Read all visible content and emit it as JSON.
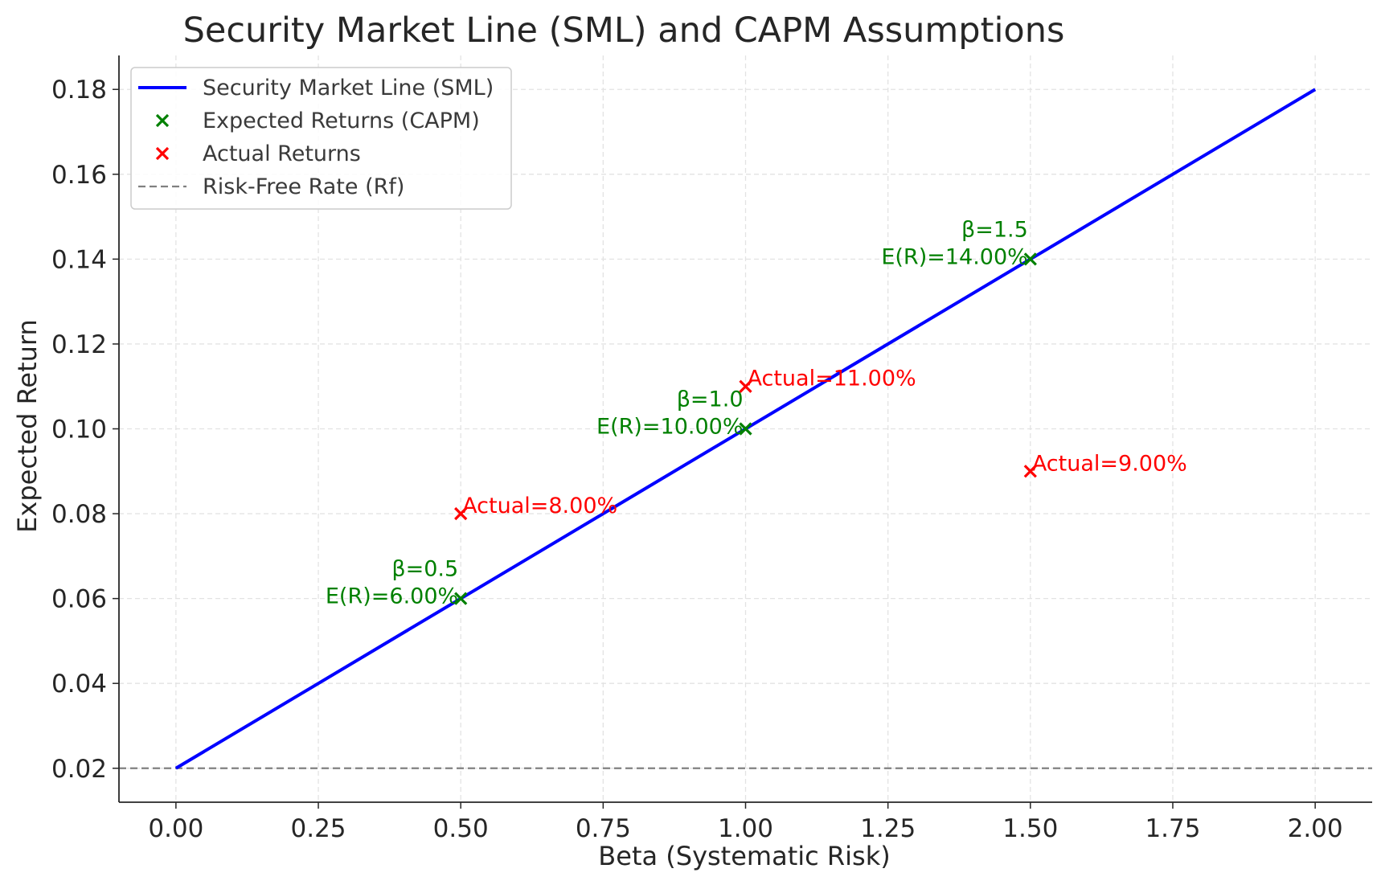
{
  "chart_data": {
    "type": "line",
    "title": "Security Market Line (SML) and CAPM Assumptions",
    "xlabel": "Beta (Systematic Risk)",
    "ylabel": "Expected Return",
    "xlim": [
      -0.1,
      2.1
    ],
    "ylim": [
      0.012,
      0.188
    ],
    "grid": true,
    "legend_position": "top-left",
    "x_ticks": [
      "0.00",
      "0.25",
      "0.50",
      "0.75",
      "1.00",
      "1.25",
      "1.50",
      "1.75",
      "2.00"
    ],
    "x_tick_values": [
      0,
      0.25,
      0.5,
      0.75,
      1.0,
      1.25,
      1.5,
      1.75,
      2.0
    ],
    "y_ticks": [
      "0.02",
      "0.04",
      "0.06",
      "0.08",
      "0.10",
      "0.12",
      "0.14",
      "0.16",
      "0.18"
    ],
    "y_tick_values": [
      0.02,
      0.04,
      0.06,
      0.08,
      0.1,
      0.12,
      0.14,
      0.16,
      0.18
    ],
    "sml": {
      "name": "Security Market Line (SML)",
      "x": [
        0,
        2
      ],
      "y": [
        0.02,
        0.18
      ],
      "color": "#0000ff"
    },
    "expected": {
      "name": "Expected Returns (CAPM)",
      "color": "#008000",
      "points": [
        {
          "beta": 0.5,
          "value": 0.06,
          "beta_label": "β=0.5",
          "value_label": "E(R)=6.00%"
        },
        {
          "beta": 1.0,
          "value": 0.1,
          "beta_label": "β=1.0",
          "value_label": "E(R)=10.00%"
        },
        {
          "beta": 1.5,
          "value": 0.14,
          "beta_label": "β=1.5",
          "value_label": "E(R)=14.00%"
        }
      ]
    },
    "actual": {
      "name": "Actual Returns",
      "color": "#ff0000",
      "points": [
        {
          "beta": 0.5,
          "value": 0.08,
          "label": "Actual=8.00%"
        },
        {
          "beta": 1.0,
          "value": 0.11,
          "label": "Actual=11.00%"
        },
        {
          "beta": 1.5,
          "value": 0.09,
          "label": "Actual=9.00%"
        }
      ]
    },
    "risk_free": {
      "name": "Risk-Free Rate (Rf)",
      "value": 0.02,
      "color": "#808080"
    }
  }
}
